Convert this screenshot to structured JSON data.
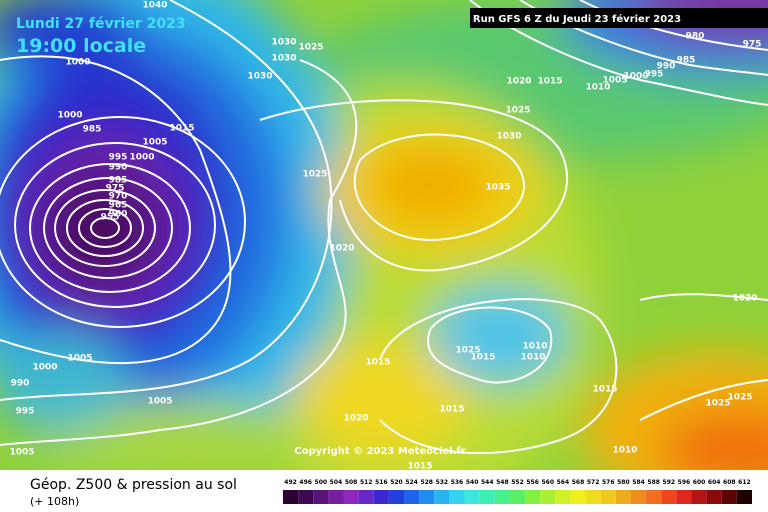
{
  "header": {
    "date": "Lundi 27 février 2023",
    "time": "19:00 locale",
    "run": "Run GFS 6 Z du Jeudi 23 février 2023"
  },
  "map": {
    "copyright": "Copyright © 2023 Meteociel.fr",
    "isobar_labels": [
      "1040",
      "1030",
      "1025",
      "1030",
      "1030",
      "1000",
      "1000",
      "985",
      "1005",
      "1015",
      "995",
      "1000",
      "990",
      "985",
      "975",
      "970",
      "965",
      "960",
      "955",
      "1025",
      "1020",
      "1030",
      "1035",
      "1025",
      "1020",
      "1015",
      "1010",
      "1005",
      "1000",
      "995",
      "990",
      "985",
      "980",
      "975",
      "1020",
      "1025",
      "1015",
      "1010",
      "1010",
      "1015",
      "1015",
      "1025",
      "1025",
      "1020",
      "1015",
      "1005",
      "1000",
      "990",
      "995",
      "1005",
      "1005",
      "1010",
      "1015"
    ]
  },
  "footer": {
    "title": "Géop. Z500 & pression au sol",
    "lead": "(+ 108h)",
    "scale": [
      492,
      496,
      500,
      504,
      508,
      512,
      516,
      520,
      524,
      528,
      532,
      536,
      540,
      544,
      548,
      552,
      556,
      560,
      564,
      568,
      572,
      576,
      580,
      584,
      588,
      592,
      596,
      600,
      604,
      608,
      612
    ]
  }
}
